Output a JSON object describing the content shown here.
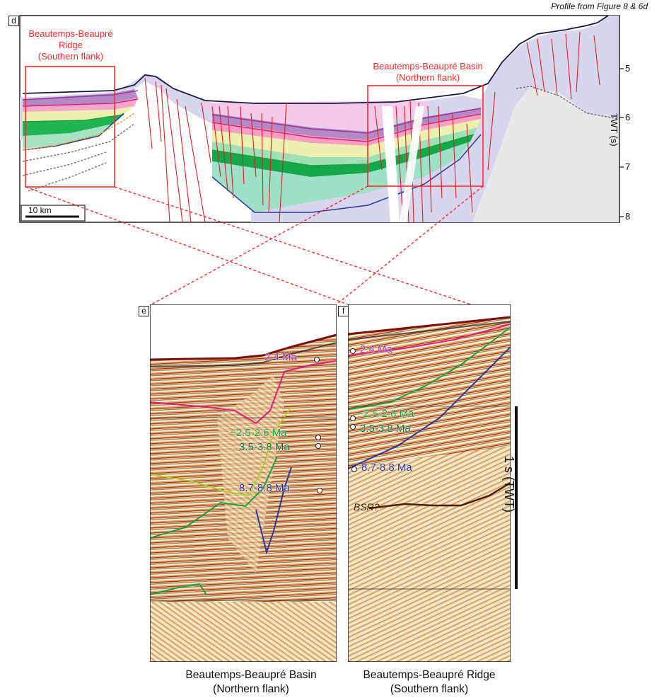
{
  "source_note": "Profile from Figure 8 & 6d",
  "panel_d": {
    "letter": "d",
    "left_box_label": [
      "Beautemps-Beaupré",
      "Ridge",
      "(Southern flank)"
    ],
    "right_box_label": [
      "Beautemps-Beaupré Basin",
      "(Northern flank)"
    ],
    "scale_bar_label": "10 km",
    "axis_title": "TWT (s)",
    "axis_ticks": [
      "5",
      "6",
      "7",
      "8"
    ]
  },
  "panel_e": {
    "letter": "e",
    "markers": {
      "m1": "2.4 Ma",
      "m2": "~2.5-2.6 Ma",
      "m3": "3.5-3.8 Ma",
      "m4": "8.7-8.8 Ma"
    },
    "caption": [
      "Beautemps-Beaupré Basin",
      "(Northern flank)"
    ]
  },
  "panel_f": {
    "letter": "f",
    "markers": {
      "m1": "2.4 Ma",
      "m2": "~2.5-2.6 Ma",
      "m3": "3.5-3.8 Ma",
      "m4": "8.7-8.8 Ma"
    },
    "bsr_label": "BSR?",
    "caption": [
      "Beautemps-Beaupré Ridge",
      "(Southern flank)"
    ]
  },
  "time_scale_label": "1 s (TWT)",
  "colors": {
    "label_red": "#ff2a2a",
    "horizon_2_4": "#a0329b",
    "horizon_2_5": "#1aa03c",
    "horizon_3_5": "#0f6e3c",
    "horizon_8_7": "#2b3a9a",
    "basement": "#d6d4ec",
    "pink_fill": "#f4c6e6"
  }
}
